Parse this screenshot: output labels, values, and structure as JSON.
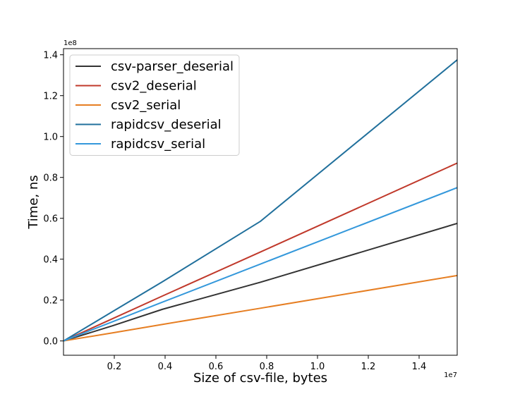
{
  "chart_data": {
    "type": "line",
    "title": "",
    "xlabel": "Size of csv-file, bytes",
    "ylabel": "Time, ns",
    "x_offset_label": "1e7",
    "y_offset_label": "1e8",
    "xlim": [
      0,
      15500000
    ],
    "ylim": [
      -7000000,
      143000000
    ],
    "x_ticks": [
      2000000,
      4000000,
      6000000,
      8000000,
      10000000,
      12000000,
      14000000
    ],
    "x_tick_labels": [
      "0.2",
      "0.4",
      "0.6",
      "0.8",
      "1.0",
      "1.2",
      "1.4"
    ],
    "y_ticks": [
      0,
      20000000,
      40000000,
      60000000,
      80000000,
      100000000,
      120000000,
      140000000
    ],
    "y_tick_labels": [
      "0.0",
      "0.2",
      "0.4",
      "0.6",
      "0.8",
      "1.0",
      "1.2",
      "1.4"
    ],
    "grid": false,
    "legend_position": "top-left",
    "x": [
      0,
      1950000,
      3900000,
      7750000,
      15500000
    ],
    "series": [
      {
        "name": "csv-parser_deserial",
        "color": "#333333",
        "values": [
          0,
          7500000,
          15500000,
          28700000,
          57500000
        ]
      },
      {
        "name": "csv2_deserial",
        "color": "#c0392b",
        "values": [
          0,
          11000000,
          22000000,
          43500000,
          87000000
        ]
      },
      {
        "name": "csv2_serial",
        "color": "#e67e22",
        "values": [
          0,
          4000000,
          8100000,
          16000000,
          32000000
        ]
      },
      {
        "name": "rapidcsv_deserial",
        "color": "#21709c",
        "values": [
          0,
          14500000,
          29000000,
          58500000,
          137500000
        ]
      },
      {
        "name": "rapidcsv_serial",
        "color": "#3498db",
        "values": [
          0,
          9500000,
          19000000,
          37600000,
          75000000
        ]
      }
    ]
  }
}
